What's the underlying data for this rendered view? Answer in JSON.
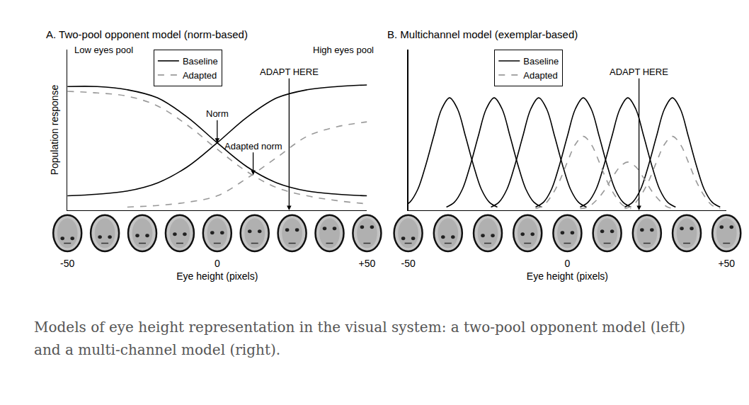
{
  "chart_data": [
    {
      "type": "line",
      "title": "A. Two-pool opponent model (norm-based)",
      "x_label": "Eye height (pixels)",
      "y_label": "Population response",
      "xlim": [
        -50,
        50
      ],
      "xticks": [
        -50,
        0,
        {
          "value": 50,
          "label": "+50"
        }
      ],
      "ylim": [
        0,
        1
      ],
      "yticks": [],
      "tick_labels": "x",
      "grid": false,
      "legend": "top left",
      "series": [
        {
          "name": "Baseline",
          "color": "#000000",
          "line_style": "solid",
          "x": [
            -50,
            -40,
            -30,
            -20,
            -10,
            0,
            10,
            20,
            30,
            40,
            50
          ],
          "values": [
            0.77,
            0.77,
            0.75,
            0.7,
            0.58,
            0.42,
            0.27,
            0.17,
            0.12,
            0.1,
            0.09
          ]
        },
        {
          "name": "Baseline",
          "color": "#000000",
          "line_style": "solid",
          "x": [
            -50,
            -40,
            -30,
            -20,
            -10,
            0,
            10,
            20,
            30,
            40,
            50
          ],
          "values": [
            0.09,
            0.1,
            0.12,
            0.17,
            0.27,
            0.42,
            0.58,
            0.7,
            0.75,
            0.77,
            0.78
          ]
        },
        {
          "name": "Adapted",
          "color": "#999999",
          "line_style": "dashed",
          "x": [
            -50,
            -40,
            -30,
            -20,
            -10,
            0,
            10,
            20,
            30,
            40,
            50
          ],
          "values": [
            0.74,
            0.73,
            0.71,
            0.65,
            0.53,
            0.38,
            0.24,
            0.14,
            0.09,
            0.06,
            0.04
          ]
        },
        {
          "name": "Adapted",
          "color": "#999999",
          "line_style": "dashed",
          "x": [
            -30,
            -20,
            -10,
            0,
            10,
            20,
            30,
            40,
            50
          ],
          "values": [
            0.02,
            0.03,
            0.05,
            0.09,
            0.2,
            0.33,
            0.46,
            0.52,
            0.55
          ]
        }
      ],
      "labels": [
        {
          "text": "Low eyes pool",
          "x": -38,
          "y": 1.0
        },
        {
          "text": "High eyes pool",
          "x": 42,
          "y": 1.0
        }
      ],
      "annotations": [
        {
          "text": "Norm",
          "x": 0,
          "y": 0.42,
          "text_y": 0.6
        },
        {
          "text": "Adapted norm",
          "x": 12,
          "y": 0.22,
          "text_y": 0.4
        },
        {
          "text": "ADAPT HERE",
          "x": 24,
          "y": 0,
          "text_y": 0.86
        }
      ]
    },
    {
      "type": "line",
      "title": "B. Multichannel model (exemplar-based)",
      "x_label": "Eye height (pixels)",
      "xlim": [
        -50,
        50
      ],
      "xticks": [
        -50,
        0,
        {
          "value": 50,
          "label": "+50"
        }
      ],
      "ylim": [
        0,
        1
      ],
      "yticks": [],
      "tick_labels": "x",
      "grid": false,
      "legend": "top left",
      "series": [
        {
          "name": "Baseline",
          "color": "#000000",
          "line_style": "solid",
          "x": [
            -52,
            -49.5,
            -47,
            -44.5,
            -42,
            -39.5,
            -37,
            -34.5,
            -32,
            -29.5,
            -27,
            -24.5,
            -22
          ],
          "values": [
            0.02,
            0.05,
            0.13,
            0.28,
            0.46,
            0.63,
            0.7,
            0.63,
            0.46,
            0.28,
            0.13,
            0.05,
            0.02
          ]
        },
        {
          "name": "Baseline",
          "color": "#000000",
          "line_style": "solid",
          "x": [
            -38,
            -35.5,
            -33,
            -30.5,
            -28,
            -25.5,
            -23,
            -20.5,
            -18,
            -15.5,
            -13,
            -10.5,
            -8
          ],
          "values": [
            0.02,
            0.05,
            0.13,
            0.28,
            0.46,
            0.63,
            0.7,
            0.63,
            0.46,
            0.28,
            0.13,
            0.05,
            0.02
          ]
        },
        {
          "name": "Baseline",
          "color": "#000000",
          "line_style": "solid",
          "x": [
            -24,
            -21.5,
            -19,
            -16.5,
            -14,
            -11.5,
            -9,
            -6.5,
            -4,
            -1.5,
            1,
            3.5,
            6
          ],
          "values": [
            0.02,
            0.05,
            0.13,
            0.28,
            0.46,
            0.63,
            0.7,
            0.63,
            0.46,
            0.28,
            0.13,
            0.05,
            0.02
          ]
        },
        {
          "name": "Baseline",
          "color": "#000000",
          "line_style": "solid",
          "x": [
            -10,
            -7.5,
            -5,
            -2.5,
            0,
            2.5,
            5,
            7.5,
            10,
            12.5,
            15,
            17.5,
            20
          ],
          "values": [
            0.02,
            0.05,
            0.13,
            0.28,
            0.46,
            0.63,
            0.7,
            0.63,
            0.46,
            0.28,
            0.13,
            0.05,
            0.02
          ]
        },
        {
          "name": "Baseline",
          "color": "#000000",
          "line_style": "solid",
          "x": [
            4,
            6.5,
            9,
            11.5,
            14,
            16.5,
            19,
            21.5,
            24,
            26.5,
            29,
            31.5,
            34
          ],
          "values": [
            0.02,
            0.05,
            0.13,
            0.28,
            0.46,
            0.63,
            0.7,
            0.63,
            0.46,
            0.28,
            0.13,
            0.05,
            0.02
          ]
        },
        {
          "name": "Baseline",
          "color": "#000000",
          "line_style": "solid",
          "x": [
            18,
            20.5,
            23,
            25.5,
            28,
            30.5,
            33,
            35.5,
            38,
            40.5,
            43,
            45.5,
            48
          ],
          "values": [
            0.02,
            0.05,
            0.13,
            0.28,
            0.46,
            0.63,
            0.7,
            0.63,
            0.46,
            0.28,
            0.13,
            0.05,
            0.02
          ]
        },
        {
          "name": "Adapted",
          "color": "#999999",
          "line_style": "dashed",
          "x": [
            -10,
            -7.5,
            -5,
            -2.5,
            0,
            2.5,
            5,
            7.5,
            10,
            12.5,
            15,
            17.5,
            20
          ],
          "values": [
            0.01,
            0.03,
            0.09,
            0.18,
            0.3,
            0.41,
            0.46,
            0.41,
            0.3,
            0.18,
            0.09,
            0.03,
            0.01
          ]
        },
        {
          "name": "Adapted",
          "color": "#999999",
          "line_style": "dashed",
          "x": [
            4,
            6.5,
            9,
            11.5,
            14,
            16.5,
            19,
            21.5,
            24,
            26.5,
            29,
            31.5,
            34
          ],
          "values": [
            0.01,
            0.02,
            0.06,
            0.12,
            0.2,
            0.27,
            0.3,
            0.27,
            0.2,
            0.12,
            0.06,
            0.02,
            0.01
          ]
        },
        {
          "name": "Adapted",
          "color": "#999999",
          "line_style": "dashed",
          "x": [
            18,
            20.5,
            23,
            25.5,
            28,
            30.5,
            33,
            35.5,
            38,
            40.5,
            43,
            45.5,
            48
          ],
          "values": [
            0.01,
            0.03,
            0.09,
            0.18,
            0.3,
            0.41,
            0.46,
            0.41,
            0.3,
            0.18,
            0.09,
            0.03,
            0.01
          ]
        }
      ],
      "annotations": [
        {
          "text": "ADAPT HERE",
          "x": 22.5,
          "y": 0,
          "text_y": 0.86
        }
      ]
    }
  ],
  "caption": "Models of eye height representation in the visual system: a two-pool opponent model (left) and a multi-channel model (right)."
}
